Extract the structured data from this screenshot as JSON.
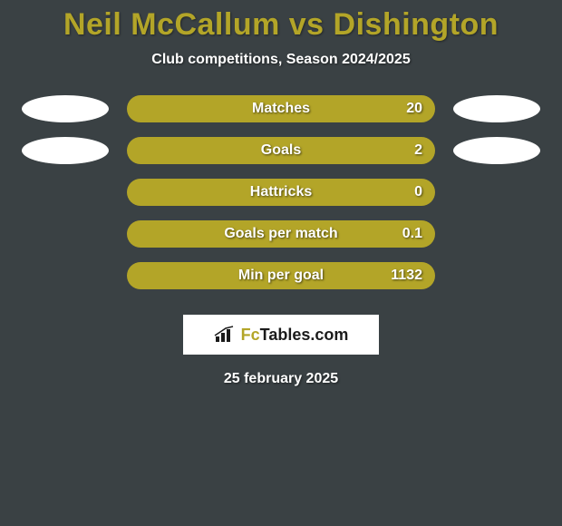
{
  "background_color": "#3a4144",
  "title": {
    "text": "Neil McCallum vs Dishington",
    "color": "#b3a528",
    "fontsize": 34
  },
  "subtitle": {
    "text": "Club competitions, Season 2024/2025",
    "color": "#ffffff",
    "fontsize": 16
  },
  "bar_color": "#b3a528",
  "bubble_color": "#ffffff",
  "stats": [
    {
      "label": "Matches",
      "value": "20",
      "left_bubble": true,
      "right_bubble": true
    },
    {
      "label": "Goals",
      "value": "2",
      "left_bubble": true,
      "right_bubble": true
    },
    {
      "label": "Hattricks",
      "value": "0",
      "left_bubble": false,
      "right_bubble": false
    },
    {
      "label": "Goals per match",
      "value": "0.1",
      "left_bubble": false,
      "right_bubble": false
    },
    {
      "label": "Min per goal",
      "value": "1132",
      "left_bubble": false,
      "right_bubble": false
    }
  ],
  "logo": {
    "icon_name": "bar-chart-icon",
    "brand_prefix": "Fc",
    "brand_main": "Tables",
    "brand_suffix": ".com",
    "prefix_color": "#b3a528",
    "main_color": "#1b1b1b",
    "bg_color": "#ffffff",
    "border_color": "#ffffff"
  },
  "date": {
    "text": "25 february 2025",
    "color": "#ffffff",
    "fontsize": 16
  }
}
